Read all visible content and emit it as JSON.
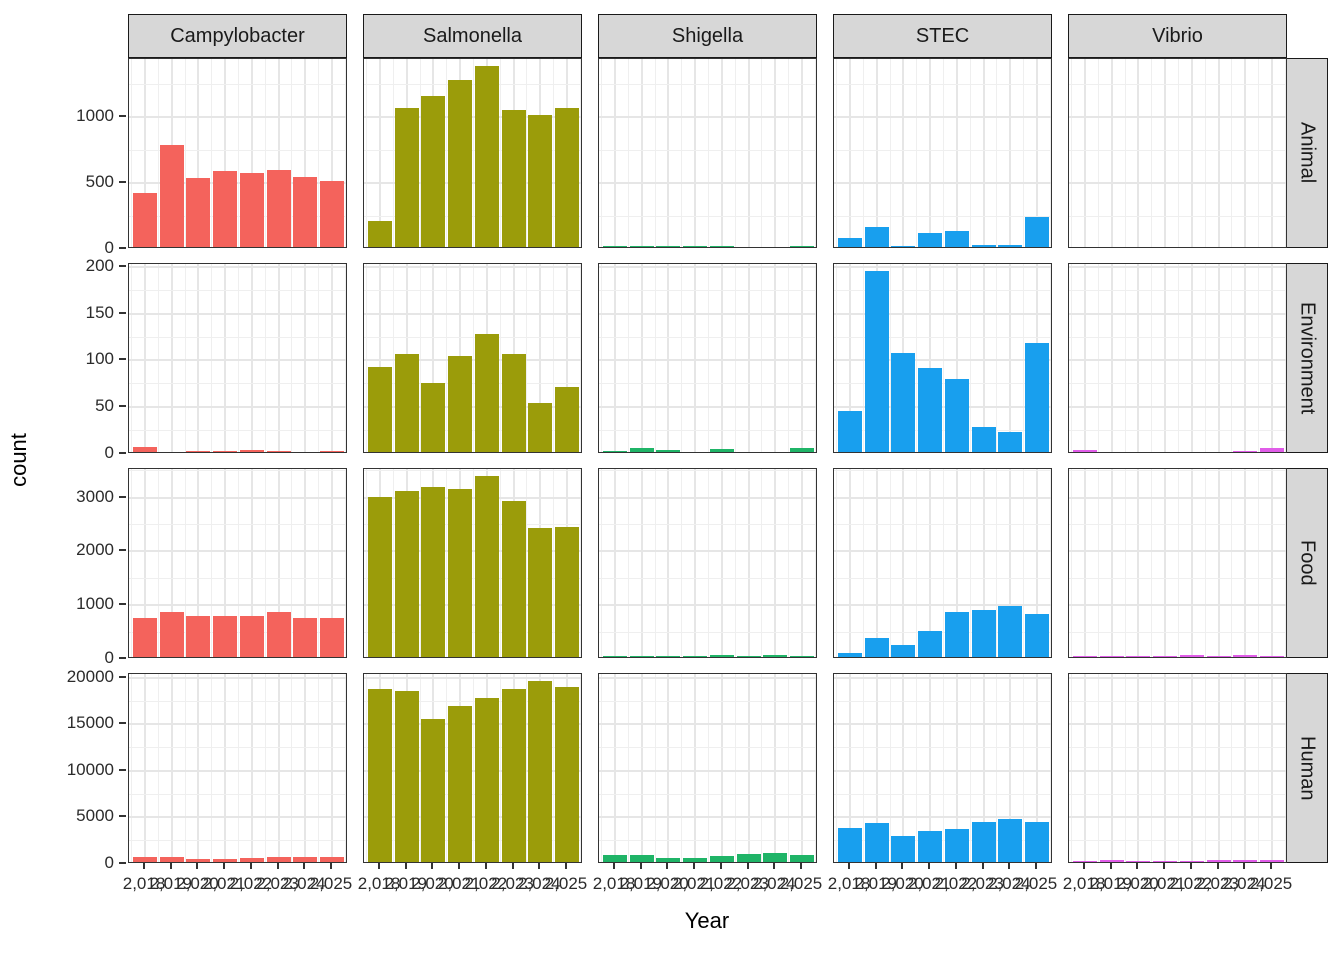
{
  "chart_data": {
    "type": "bar",
    "title": "",
    "xlabel": "Year",
    "ylabel": "count",
    "facet_columns": [
      "Campylobacter",
      "Salmonella",
      "Shigella",
      "STEC",
      "Vibrio"
    ],
    "facet_rows": [
      "Animal",
      "Environment",
      "Food",
      "Human"
    ],
    "x": [
      2018,
      2019,
      2020,
      2021,
      2022,
      2023,
      2024,
      2025
    ],
    "x_labels": [
      "2,018",
      "2,019",
      "2,020",
      "2,021",
      "2,022",
      "2,023",
      "2,024",
      "2,025"
    ],
    "legend": "none",
    "grid": true,
    "column_colors": [
      "#f4635c",
      "#9b9c0a",
      "#1fb467",
      "#189fee",
      "#e05ce8"
    ],
    "row_scales": [
      {
        "row": "Animal",
        "ticks": [
          0,
          500,
          1000
        ],
        "ylim": [
          0,
          1440
        ]
      },
      {
        "row": "Environment",
        "ticks": [
          0,
          50,
          100,
          150,
          200
        ],
        "ylim": [
          0,
          203
        ]
      },
      {
        "row": "Food",
        "ticks": [
          0,
          1000,
          2000,
          3000
        ],
        "ylim": [
          0,
          3530
        ]
      },
      {
        "row": "Human",
        "ticks": [
          0,
          5000,
          10000,
          15000,
          20000
        ],
        "ylim": [
          0,
          20400
        ]
      }
    ],
    "series": [
      {
        "row": "Animal",
        "values_by_column": {
          "Campylobacter": [
            410,
            775,
            520,
            575,
            560,
            585,
            530,
            500
          ],
          "Salmonella": [
            200,
            1055,
            1145,
            1265,
            1370,
            1040,
            1000,
            1050
          ],
          "Shigella": [
            3,
            6,
            2,
            2,
            2,
            0,
            0,
            6
          ],
          "STEC": [
            65,
            150,
            8,
            110,
            125,
            18,
            15,
            225
          ],
          "Vibrio": [
            0,
            0,
            0,
            0,
            0,
            0,
            0,
            0
          ]
        }
      },
      {
        "row": "Environment",
        "values_by_column": {
          "Campylobacter": [
            5,
            0,
            1,
            1,
            2,
            1,
            0,
            1
          ],
          "Salmonella": [
            91,
            105,
            74,
            103,
            126,
            105,
            52,
            69
          ],
          "Shigella": [
            1,
            4,
            2,
            0,
            3,
            0,
            0,
            4
          ],
          "STEC": [
            44,
            193,
            106,
            90,
            78,
            27,
            21,
            116
          ],
          "Vibrio": [
            2,
            0,
            0,
            0,
            0,
            0,
            1,
            4
          ]
        }
      },
      {
        "row": "Food",
        "values_by_column": {
          "Campylobacter": [
            720,
            830,
            770,
            770,
            770,
            830,
            730,
            720
          ],
          "Salmonella": [
            2980,
            3080,
            3150,
            3120,
            3360,
            2890,
            2400,
            2420
          ],
          "Shigella": [
            15,
            15,
            15,
            10,
            35,
            15,
            35,
            10
          ],
          "STEC": [
            80,
            360,
            230,
            480,
            830,
            880,
            950,
            790
          ],
          "Vibrio": [
            15,
            10,
            15,
            10,
            30,
            15,
            30,
            15
          ]
        }
      },
      {
        "row": "Human",
        "values_by_column": {
          "Campylobacter": [
            500,
            550,
            350,
            350,
            450,
            550,
            500,
            550
          ],
          "Salmonella": [
            18600,
            18400,
            15400,
            16800,
            17600,
            18600,
            19400,
            18800
          ],
          "Shigella": [
            750,
            700,
            450,
            400,
            650,
            850,
            950,
            800
          ],
          "STEC": [
            3700,
            4200,
            2800,
            3300,
            3500,
            4300,
            4600,
            4300
          ],
          "Vibrio": [
            100,
            200,
            100,
            150,
            150,
            250,
            250,
            200
          ]
        }
      }
    ],
    "strip_background": "#d7d7d7",
    "panel_border_color": "#333333",
    "gridline_color": "#e6e6e6"
  }
}
